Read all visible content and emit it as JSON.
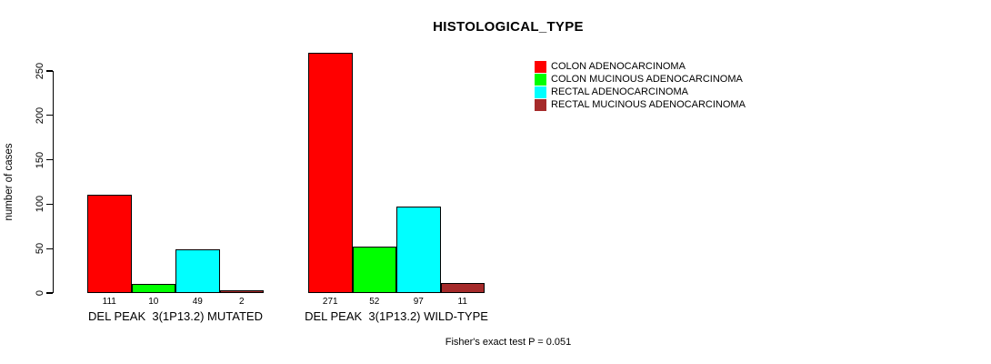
{
  "title": "HISTOLOGICAL_TYPE",
  "ylabel": "number of cases",
  "footnote": "Fisher's exact test P = 0.051",
  "legend": {
    "entries": [
      {
        "label": "COLON ADENOCARCINOMA",
        "color": "#ff0000"
      },
      {
        "label": "COLON MUCINOUS ADENOCARCINOMA",
        "color": "#00ff00"
      },
      {
        "label": "RECTAL ADENOCARCINOMA",
        "color": "#00ffff"
      },
      {
        "label": "RECTAL MUCINOUS ADENOCARCINOMA",
        "color": "#a52a2a"
      }
    ]
  },
  "chart_data": {
    "type": "bar",
    "title": "HISTOLOGICAL_TYPE",
    "ylabel": "number of cases",
    "ylim": [
      0,
      250
    ],
    "yticks": [
      0,
      50,
      100,
      150,
      200,
      250
    ],
    "grid": false,
    "legend_position": "top-right",
    "categories": [
      "DEL PEAK  3(1P13.2) MUTATED",
      "DEL PEAK  3(1P13.2) WILD-TYPE"
    ],
    "series": [
      {
        "name": "COLON ADENOCARCINOMA",
        "color": "#ff0000",
        "values": [
          111,
          271
        ]
      },
      {
        "name": "COLON MUCINOUS ADENOCARCINOMA",
        "color": "#00ff00",
        "values": [
          10,
          52
        ]
      },
      {
        "name": "RECTAL ADENOCARCINOMA",
        "color": "#00ffff",
        "values": [
          49,
          97
        ]
      },
      {
        "name": "RECTAL MUCINOUS ADENOCARCINOMA",
        "color": "#a52a2a",
        "values": [
          2,
          11
        ]
      }
    ],
    "bar_value_labels": [
      [
        111,
        10,
        49,
        2
      ],
      [
        271,
        52,
        97,
        11
      ]
    ],
    "annotation": "Fisher's exact test P = 0.051"
  }
}
